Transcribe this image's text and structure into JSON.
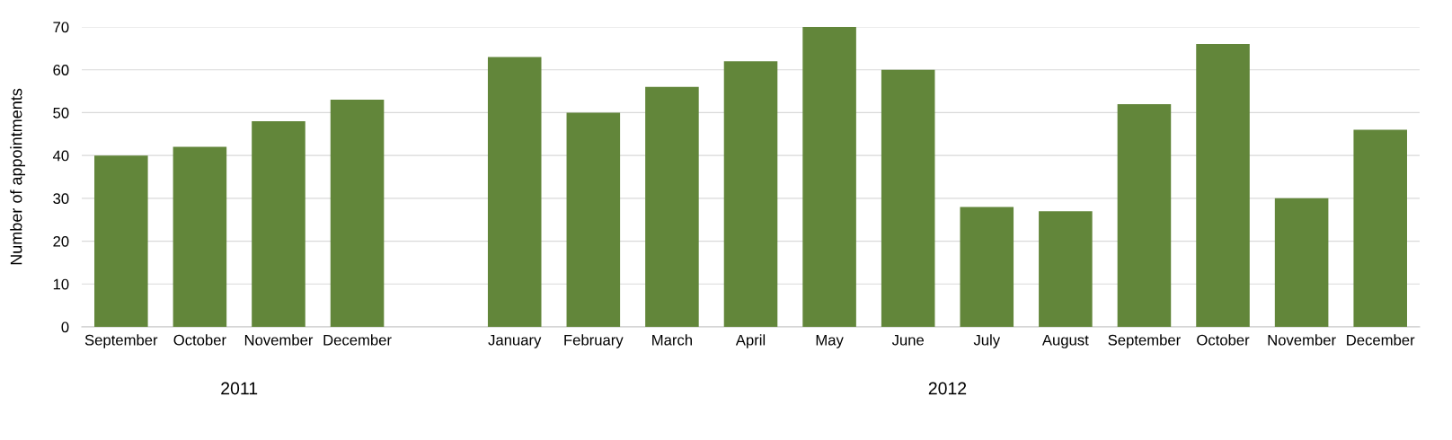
{
  "chart_data": {
    "type": "bar",
    "ylabel": "Number of appointments",
    "categories": [
      "September",
      "October",
      "November",
      "December",
      null,
      "January",
      "February",
      "March",
      "April",
      "May",
      "June",
      "July",
      "August",
      "September",
      "October",
      "November",
      "December"
    ],
    "values": [
      40,
      42,
      48,
      53,
      null,
      63,
      50,
      56,
      62,
      70,
      60,
      28,
      27,
      52,
      66,
      30,
      46
    ],
    "color": "#62863a",
    "ylim": [
      0,
      70
    ],
    "yticks": [
      0,
      10,
      20,
      30,
      40,
      50,
      60,
      70
    ],
    "grid": "y",
    "annotations": [
      "2011",
      "2012"
    ]
  }
}
